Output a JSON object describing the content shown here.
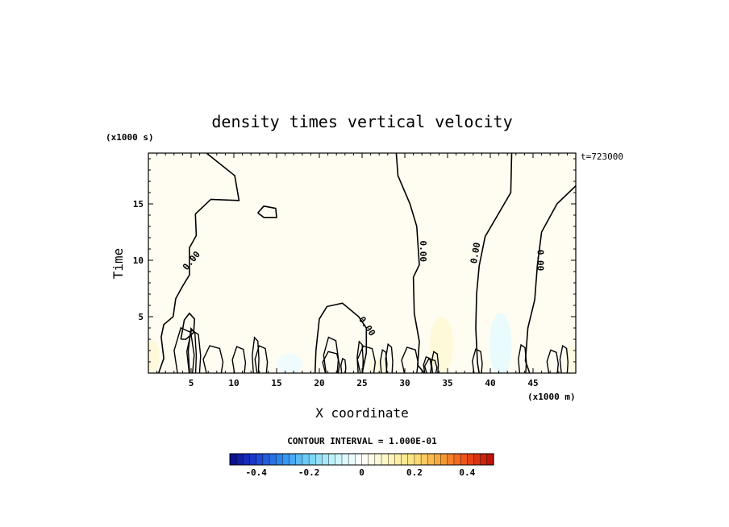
{
  "chart_data": {
    "type": "heatmap",
    "title": "density times vertical velocity",
    "xlabel": "X coordinate",
    "ylabel": "Time",
    "x_unit_label": "(x1000 m)",
    "y_unit_label": "(x1000 s)",
    "time_stamp": "t=723000",
    "xlim": [
      0,
      50
    ],
    "ylim": [
      0,
      19.5
    ],
    "x_ticks": [
      5,
      10,
      15,
      20,
      25,
      30,
      35,
      40,
      45
    ],
    "y_ticks": [
      5,
      10,
      15
    ],
    "contour_label": "0.00",
    "contour_interval_text": "CONTOUR INTERVAL = 1.000E-01",
    "colorbar": {
      "range": [
        -0.5,
        0.5
      ],
      "ticks": [
        -0.4,
        -0.2,
        0,
        0.2,
        0.4
      ],
      "tick_labels": [
        "-0.4",
        "-0.2",
        "0",
        "0.2",
        "0.4"
      ],
      "n_bins": 40,
      "colors": [
        "#0a0a8c",
        "#1f3fd0",
        "#2f8ff0",
        "#74d3f5",
        "#c8f4fb",
        "#ffffff",
        "#fdf6c0",
        "#fbe17a",
        "#f8a236",
        "#ec4a16",
        "#b80d08"
      ]
    },
    "background_field_value": 0.02,
    "zero_contours": [
      [
        [
          6.8,
          19.5
        ],
        [
          10.1,
          17.5
        ],
        [
          10.6,
          15.3
        ],
        [
          7.3,
          15.4
        ],
        [
          5.5,
          14.1
        ],
        [
          5.6,
          12.2
        ],
        [
          4.8,
          11.1
        ],
        [
          4.8,
          8.7
        ],
        [
          4.0,
          7.7
        ],
        [
          3.2,
          6.6
        ],
        [
          2.9,
          5.0
        ],
        [
          1.8,
          4.3
        ],
        [
          1.5,
          3.2
        ],
        [
          1.8,
          1.3
        ],
        [
          1.2,
          0
        ]
      ],
      [
        [
          29.0,
          19.5
        ],
        [
          29.2,
          17.5
        ],
        [
          30.6,
          15.0
        ],
        [
          31.4,
          13.0
        ],
        [
          31.7,
          9.6
        ],
        [
          31.0,
          8.5
        ],
        [
          31.1,
          5.3
        ],
        [
          31.7,
          2.8
        ],
        [
          31.5,
          0.7
        ],
        [
          32.3,
          0
        ]
      ],
      [
        [
          42.5,
          19.5
        ],
        [
          42.4,
          16.0
        ],
        [
          39.4,
          12.1
        ],
        [
          38.7,
          9.5
        ],
        [
          38.4,
          7.0
        ],
        [
          38.3,
          4.0
        ],
        [
          38.5,
          0.9
        ],
        [
          38.7,
          0
        ]
      ],
      [
        [
          50.0,
          16.6
        ],
        [
          47.8,
          15.0
        ],
        [
          46.0,
          12.5
        ],
        [
          45.5,
          9.5
        ],
        [
          45.2,
          6.5
        ],
        [
          44.4,
          4.0
        ],
        [
          44.1,
          1.1
        ],
        [
          44.6,
          0
        ]
      ],
      [
        [
          12.8,
          14.2
        ],
        [
          13.5,
          13.8
        ],
        [
          15.0,
          13.8
        ],
        [
          14.9,
          14.6
        ],
        [
          13.5,
          14.8
        ],
        [
          12.8,
          14.2
        ]
      ],
      [
        [
          19.5,
          0
        ],
        [
          19.6,
          2.0
        ],
        [
          20.0,
          4.8
        ],
        [
          20.9,
          5.9
        ],
        [
          22.7,
          6.2
        ],
        [
          24.6,
          5.0
        ],
        [
          25.5,
          4.0
        ],
        [
          25.5,
          1.8
        ],
        [
          25.0,
          0
        ]
      ],
      [
        [
          3.8,
          3.0
        ],
        [
          4.2,
          4.7
        ],
        [
          4.8,
          5.3
        ],
        [
          5.4,
          4.8
        ],
        [
          5.3,
          3.6
        ],
        [
          4.4,
          3.0
        ],
        [
          3.8,
          3.0
        ]
      ]
    ],
    "zero_contour_label_positions": [
      [
        5.3,
        9.8
      ],
      [
        25.3,
        4.0
      ],
      [
        31.8,
        10.8
      ],
      [
        38.6,
        10.6
      ],
      [
        45.5,
        10.0
      ]
    ]
  }
}
